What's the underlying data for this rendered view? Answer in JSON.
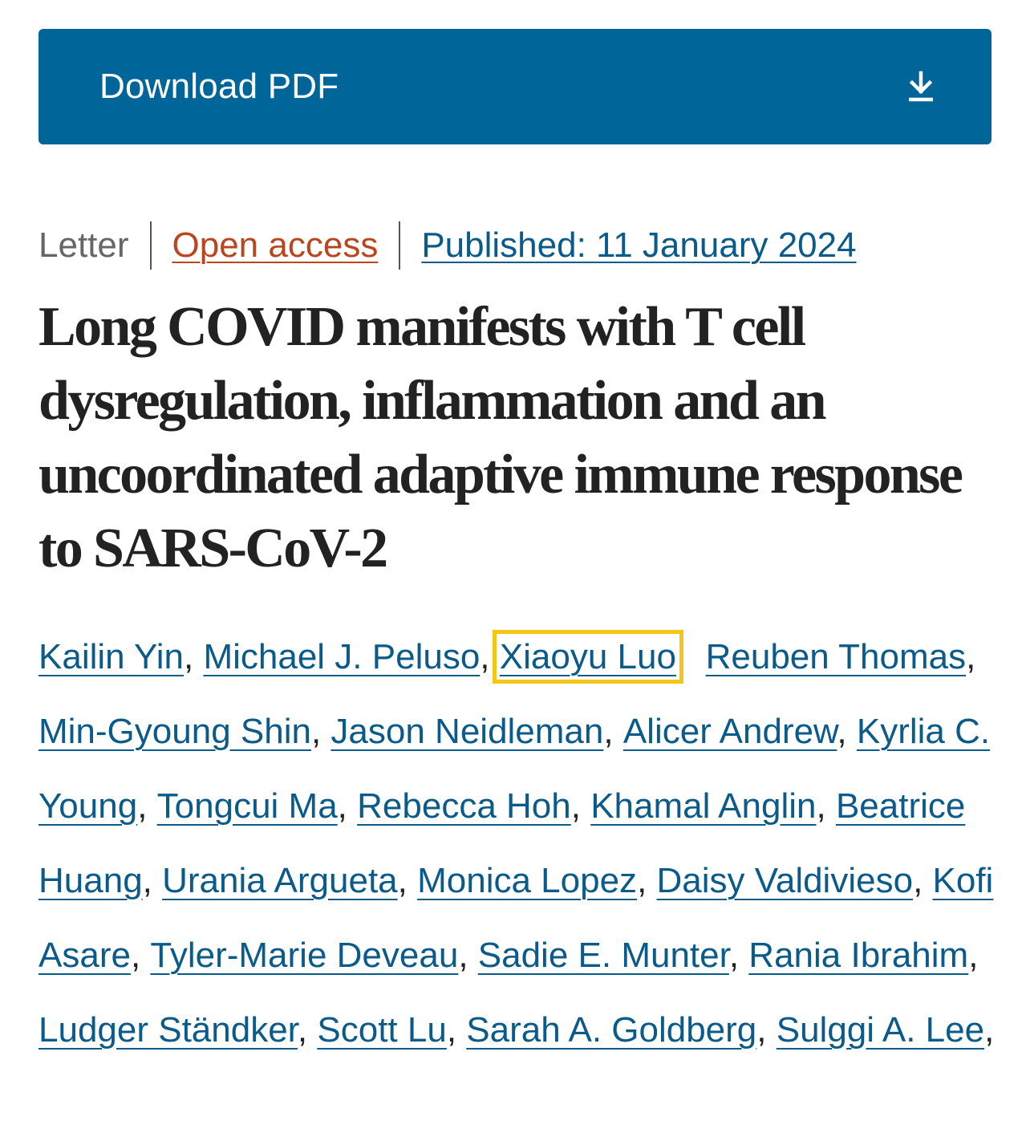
{
  "download": {
    "label": "Download PDF",
    "icon": "download-icon"
  },
  "meta": {
    "type": "Letter",
    "access": "Open access",
    "published": "Published: 11 January 2024"
  },
  "title": "Long COVID manifests with T cell dysregulation, inflammation and an uncoordinated adaptive immune response to SARS-CoV-2",
  "authors": [
    {
      "name": "Kailin Yin",
      "sep": ", "
    },
    {
      "name": "Michael J. Peluso",
      "sep": ", "
    },
    {
      "name": "Xiaoyu Luo",
      "sep": "  ",
      "highlighted": true
    },
    {
      "name": "Reuben Thomas",
      "sep": ", "
    },
    {
      "name": "Min-Gyoung Shin",
      "sep": ", "
    },
    {
      "name": "Jason Neidleman",
      "sep": ", "
    },
    {
      "name": "Alicer Andrew",
      "sep": ", "
    },
    {
      "name": "Kyrlia C. Young",
      "sep": ", "
    },
    {
      "name": "Tongcui Ma",
      "sep": ", "
    },
    {
      "name": "Rebecca Hoh",
      "sep": ", "
    },
    {
      "name": "Khamal Anglin",
      "sep": ", "
    },
    {
      "name": "Beatrice Huang",
      "sep": ", "
    },
    {
      "name": "Urania Argueta",
      "sep": ", "
    },
    {
      "name": "Monica Lopez",
      "sep": ", "
    },
    {
      "name": "Daisy Valdivieso",
      "sep": ", "
    },
    {
      "name": "Kofi Asare",
      "sep": ", "
    },
    {
      "name": "Tyler-Marie Deveau",
      "sep": ", "
    },
    {
      "name": "Sadie E. Munter",
      "sep": ", "
    },
    {
      "name": "Rania Ibrahim",
      "sep": ", "
    },
    {
      "name": "Ludger Ständker",
      "sep": ", "
    },
    {
      "name": "Scott Lu",
      "sep": ", "
    },
    {
      "name": "Sarah A. Goldberg",
      "sep": ", "
    },
    {
      "name": "Sulggi A. Lee",
      "sep": ","
    }
  ],
  "colors": {
    "button_bg": "#006699",
    "link": "#0a5a8a",
    "open_access": "#b9461f",
    "highlight": "#f5c518"
  }
}
